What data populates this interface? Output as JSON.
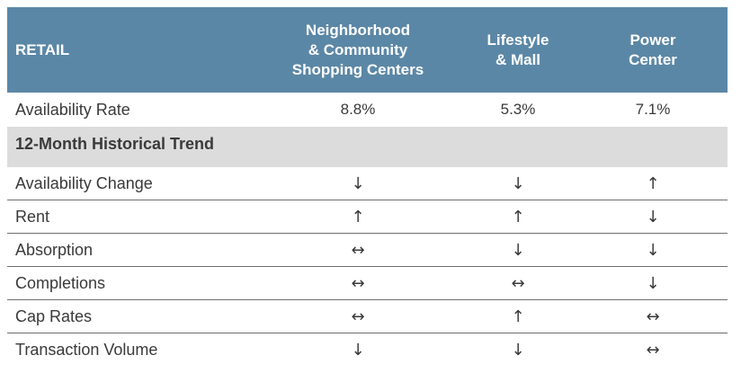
{
  "header": {
    "retail": "RETAIL",
    "col1": [
      "Neighborhood",
      "& Community",
      "Shopping Centers"
    ],
    "col2": [
      "Lifestyle",
      "& Mall"
    ],
    "col3": [
      "Power",
      "Center"
    ]
  },
  "availability_rate": {
    "label": "Availability Rate",
    "values": [
      "8.8%",
      "5.3%",
      "7.1%"
    ]
  },
  "section": {
    "title": "12-Month Historical Trend"
  },
  "arrow_glyphs": {
    "down": "↓",
    "up": "↑",
    "flat": "↔"
  },
  "trend_rows": [
    {
      "label": "Availability Change",
      "values": [
        "down",
        "down",
        "up"
      ],
      "glyphs": [
        "↓",
        "↓",
        "↑"
      ]
    },
    {
      "label": "Rent",
      "values": [
        "up",
        "up",
        "down"
      ],
      "glyphs": [
        "↑",
        "↑",
        "↓"
      ]
    },
    {
      "label": "Absorption",
      "values": [
        "flat",
        "down",
        "down"
      ],
      "glyphs": [
        "↔",
        "↓",
        "↓"
      ]
    },
    {
      "label": "Completions",
      "values": [
        "flat",
        "flat",
        "down"
      ],
      "glyphs": [
        "↔",
        "↔",
        "↓"
      ]
    },
    {
      "label": "Cap Rates",
      "values": [
        "flat",
        "up",
        "flat"
      ],
      "glyphs": [
        "↔",
        "↑",
        "↔"
      ]
    },
    {
      "label": "Transaction Volume",
      "values": [
        "down",
        "down",
        "flat"
      ],
      "glyphs": [
        "↓",
        "↓",
        "↔"
      ]
    }
  ]
}
